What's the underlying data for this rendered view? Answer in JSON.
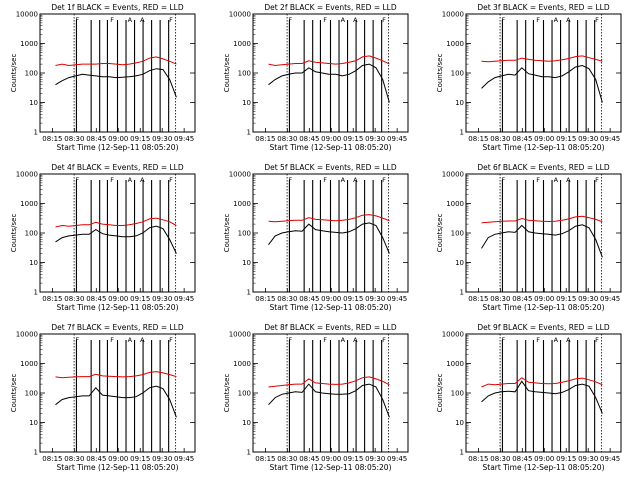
{
  "chart_data": [
    {
      "type": "line",
      "title": "Det 1f BLACK = Events, RED = LLD",
      "ylabel": "Counts/sec",
      "xlabel": "",
      "yscale": "log",
      "ylim": [
        1,
        10000
      ],
      "xtick_labels": [
        "08:15",
        "08:30",
        "08:45",
        "09:00",
        "09:15",
        "09:30",
        "09:45"
      ],
      "series": [
        {
          "name": "BLACK = Events",
          "color": "#000000",
          "values": [
            40,
            55,
            70,
            80,
            90,
            85,
            80,
            75,
            75,
            70,
            72,
            75,
            80,
            90,
            120,
            140,
            130,
            60,
            15
          ]
        },
        {
          "name": "RED = LLD",
          "color": "#e00000",
          "values": [
            180,
            200,
            180,
            190,
            200,
            200,
            200,
            210,
            210,
            200,
            190,
            200,
            220,
            250,
            320,
            350,
            300,
            250,
            200
          ]
        }
      ]
    },
    {
      "type": "line",
      "title": "Det 2f BLACK = Events, RED = LLD",
      "ylabel": "Counts/sec",
      "xlabel": "",
      "yscale": "log",
      "ylim": [
        1,
        10000
      ],
      "xtick_labels": [
        "08:15",
        "08:30",
        "08:45",
        "09:00",
        "09:15",
        "09:30",
        "09:45"
      ],
      "series": [
        {
          "name": "BLACK = Events",
          "color": "#000000",
          "values": [
            40,
            60,
            80,
            90,
            100,
            100,
            150,
            110,
            100,
            90,
            90,
            80,
            90,
            120,
            180,
            200,
            150,
            60,
            10
          ]
        },
        {
          "name": "RED = LLD",
          "color": "#e00000",
          "values": [
            200,
            180,
            190,
            200,
            210,
            210,
            260,
            230,
            220,
            210,
            200,
            210,
            230,
            260,
            350,
            380,
            320,
            260,
            200
          ]
        }
      ]
    },
    {
      "type": "line",
      "title": "Det 3f BLACK = Events, RED = LLD",
      "ylabel": "Counts/sec",
      "xlabel": "",
      "yscale": "log",
      "ylim": [
        1,
        10000
      ],
      "xtick_labels": [
        "08:15",
        "08:30",
        "08:45",
        "09:00",
        "09:15",
        "09:30",
        "09:45"
      ],
      "series": [
        {
          "name": "BLACK = Events",
          "color": "#000000",
          "values": [
            30,
            50,
            70,
            80,
            90,
            85,
            150,
            95,
            85,
            75,
            75,
            70,
            80,
            110,
            160,
            180,
            140,
            60,
            10
          ]
        },
        {
          "name": "RED = LLD",
          "color": "#e00000",
          "values": [
            250,
            240,
            250,
            260,
            270,
            270,
            320,
            290,
            270,
            260,
            250,
            260,
            280,
            310,
            360,
            380,
            330,
            290,
            250
          ]
        }
      ]
    },
    {
      "type": "line",
      "title": "Det 4f BLACK = Events, RED = LLD",
      "ylabel": "Counts/sec",
      "xlabel": "",
      "yscale": "log",
      "ylim": [
        1,
        10000
      ],
      "xtick_labels": [
        "08:15",
        "08:30",
        "08:45",
        "09:00",
        "09:15",
        "09:30",
        "09:45"
      ],
      "series": [
        {
          "name": "BLACK = Events",
          "color": "#000000",
          "values": [
            50,
            70,
            80,
            85,
            90,
            90,
            130,
            95,
            85,
            80,
            75,
            75,
            80,
            100,
            150,
            170,
            140,
            60,
            20
          ]
        },
        {
          "name": "RED = LLD",
          "color": "#e00000",
          "values": [
            160,
            180,
            170,
            180,
            190,
            190,
            230,
            200,
            190,
            180,
            180,
            190,
            210,
            240,
            300,
            320,
            280,
            240,
            180
          ]
        }
      ]
    },
    {
      "type": "line",
      "title": "Det 5f BLACK = Events, RED = LLD",
      "ylabel": "Counts/sec",
      "xlabel": "",
      "yscale": "log",
      "ylim": [
        1,
        10000
      ],
      "xtick_labels": [
        "08:15",
        "08:30",
        "08:45",
        "09:00",
        "09:15",
        "09:30",
        "09:45"
      ],
      "series": [
        {
          "name": "BLACK = Events",
          "color": "#000000",
          "values": [
            40,
            80,
            100,
            110,
            120,
            115,
            200,
            130,
            120,
            110,
            105,
            100,
            110,
            140,
            200,
            220,
            180,
            70,
            20
          ]
        },
        {
          "name": "RED = LLD",
          "color": "#e00000",
          "values": [
            250,
            240,
            250,
            260,
            270,
            270,
            330,
            290,
            280,
            270,
            260,
            270,
            290,
            330,
            400,
            420,
            380,
            320,
            260
          ]
        }
      ]
    },
    {
      "type": "line",
      "title": "Det 6f BLACK = Events, RED = LLD",
      "ylabel": "Counts/sec",
      "xlabel": "",
      "yscale": "log",
      "ylim": [
        1,
        10000
      ],
      "xtick_labels": [
        "08:15",
        "08:30",
        "08:45",
        "09:00",
        "09:15",
        "09:30",
        "09:45"
      ],
      "series": [
        {
          "name": "BLACK = Events",
          "color": "#000000",
          "values": [
            30,
            70,
            90,
            100,
            110,
            105,
            180,
            110,
            100,
            95,
            90,
            85,
            95,
            120,
            170,
            190,
            150,
            60,
            15
          ]
        },
        {
          "name": "RED = LLD",
          "color": "#e00000",
          "values": [
            220,
            230,
            240,
            250,
            255,
            255,
            310,
            270,
            260,
            250,
            245,
            250,
            270,
            300,
            350,
            370,
            330,
            290,
            240
          ]
        }
      ]
    },
    {
      "type": "line",
      "title": "Det 7f BLACK = Events, RED = LLD",
      "ylabel": "Counts/sec",
      "xlabel": "",
      "yscale": "log",
      "ylim": [
        1,
        10000
      ],
      "xtick_labels": [
        "08:15",
        "08:30",
        "08:45",
        "09:00",
        "09:15",
        "09:30",
        "09:45"
      ],
      "series": [
        {
          "name": "BLACK = Events",
          "color": "#000000",
          "values": [
            40,
            60,
            70,
            75,
            80,
            80,
            150,
            85,
            80,
            75,
            70,
            70,
            75,
            100,
            150,
            170,
            140,
            60,
            15
          ]
        },
        {
          "name": "RED = LLD",
          "color": "#e00000",
          "values": [
            350,
            330,
            340,
            350,
            360,
            360,
            430,
            380,
            370,
            360,
            350,
            360,
            380,
            420,
            500,
            530,
            480,
            420,
            360
          ]
        }
      ]
    },
    {
      "type": "line",
      "title": "Det 8f BLACK = Events, RED = LLD",
      "ylabel": "Counts/sec",
      "xlabel": "",
      "yscale": "log",
      "ylim": [
        1,
        10000
      ],
      "xtick_labels": [
        "08:15",
        "08:30",
        "08:45",
        "09:00",
        "09:15",
        "09:30",
        "09:45"
      ],
      "series": [
        {
          "name": "BLACK = Events",
          "color": "#000000",
          "values": [
            40,
            70,
            90,
            100,
            110,
            105,
            200,
            110,
            100,
            95,
            90,
            90,
            95,
            120,
            180,
            200,
            160,
            60,
            15
          ]
        },
        {
          "name": "RED = LLD",
          "color": "#e00000",
          "values": [
            160,
            170,
            180,
            190,
            200,
            200,
            300,
            220,
            210,
            200,
            195,
            200,
            220,
            260,
            330,
            350,
            300,
            250,
            190
          ]
        }
      ]
    },
    {
      "type": "line",
      "title": "Det 9f BLACK = Events, RED = LLD",
      "ylabel": "Counts/sec",
      "xlabel": "",
      "yscale": "log",
      "ylim": [
        1,
        10000
      ],
      "xtick_labels": [
        "08:15",
        "08:30",
        "08:45",
        "09:00",
        "09:15",
        "09:30",
        "09:45"
      ],
      "series": [
        {
          "name": "BLACK = Events",
          "color": "#000000",
          "values": [
            50,
            80,
            100,
            110,
            115,
            110,
            250,
            120,
            110,
            105,
            100,
            95,
            105,
            130,
            180,
            200,
            170,
            70,
            20
          ]
        },
        {
          "name": "RED = LLD",
          "color": "#e00000",
          "values": [
            160,
            200,
            190,
            200,
            210,
            210,
            330,
            230,
            220,
            210,
            205,
            210,
            230,
            260,
            300,
            320,
            280,
            240,
            190
          ]
        }
      ]
    }
  ],
  "footer_label": "Start Time (12-Sep-11 08:05:20)",
  "y_tick_labels": [
    "1",
    "10",
    "100",
    "1000",
    "10000"
  ],
  "marker_labels": [
    "F",
    "F",
    "A",
    "A",
    "F"
  ]
}
